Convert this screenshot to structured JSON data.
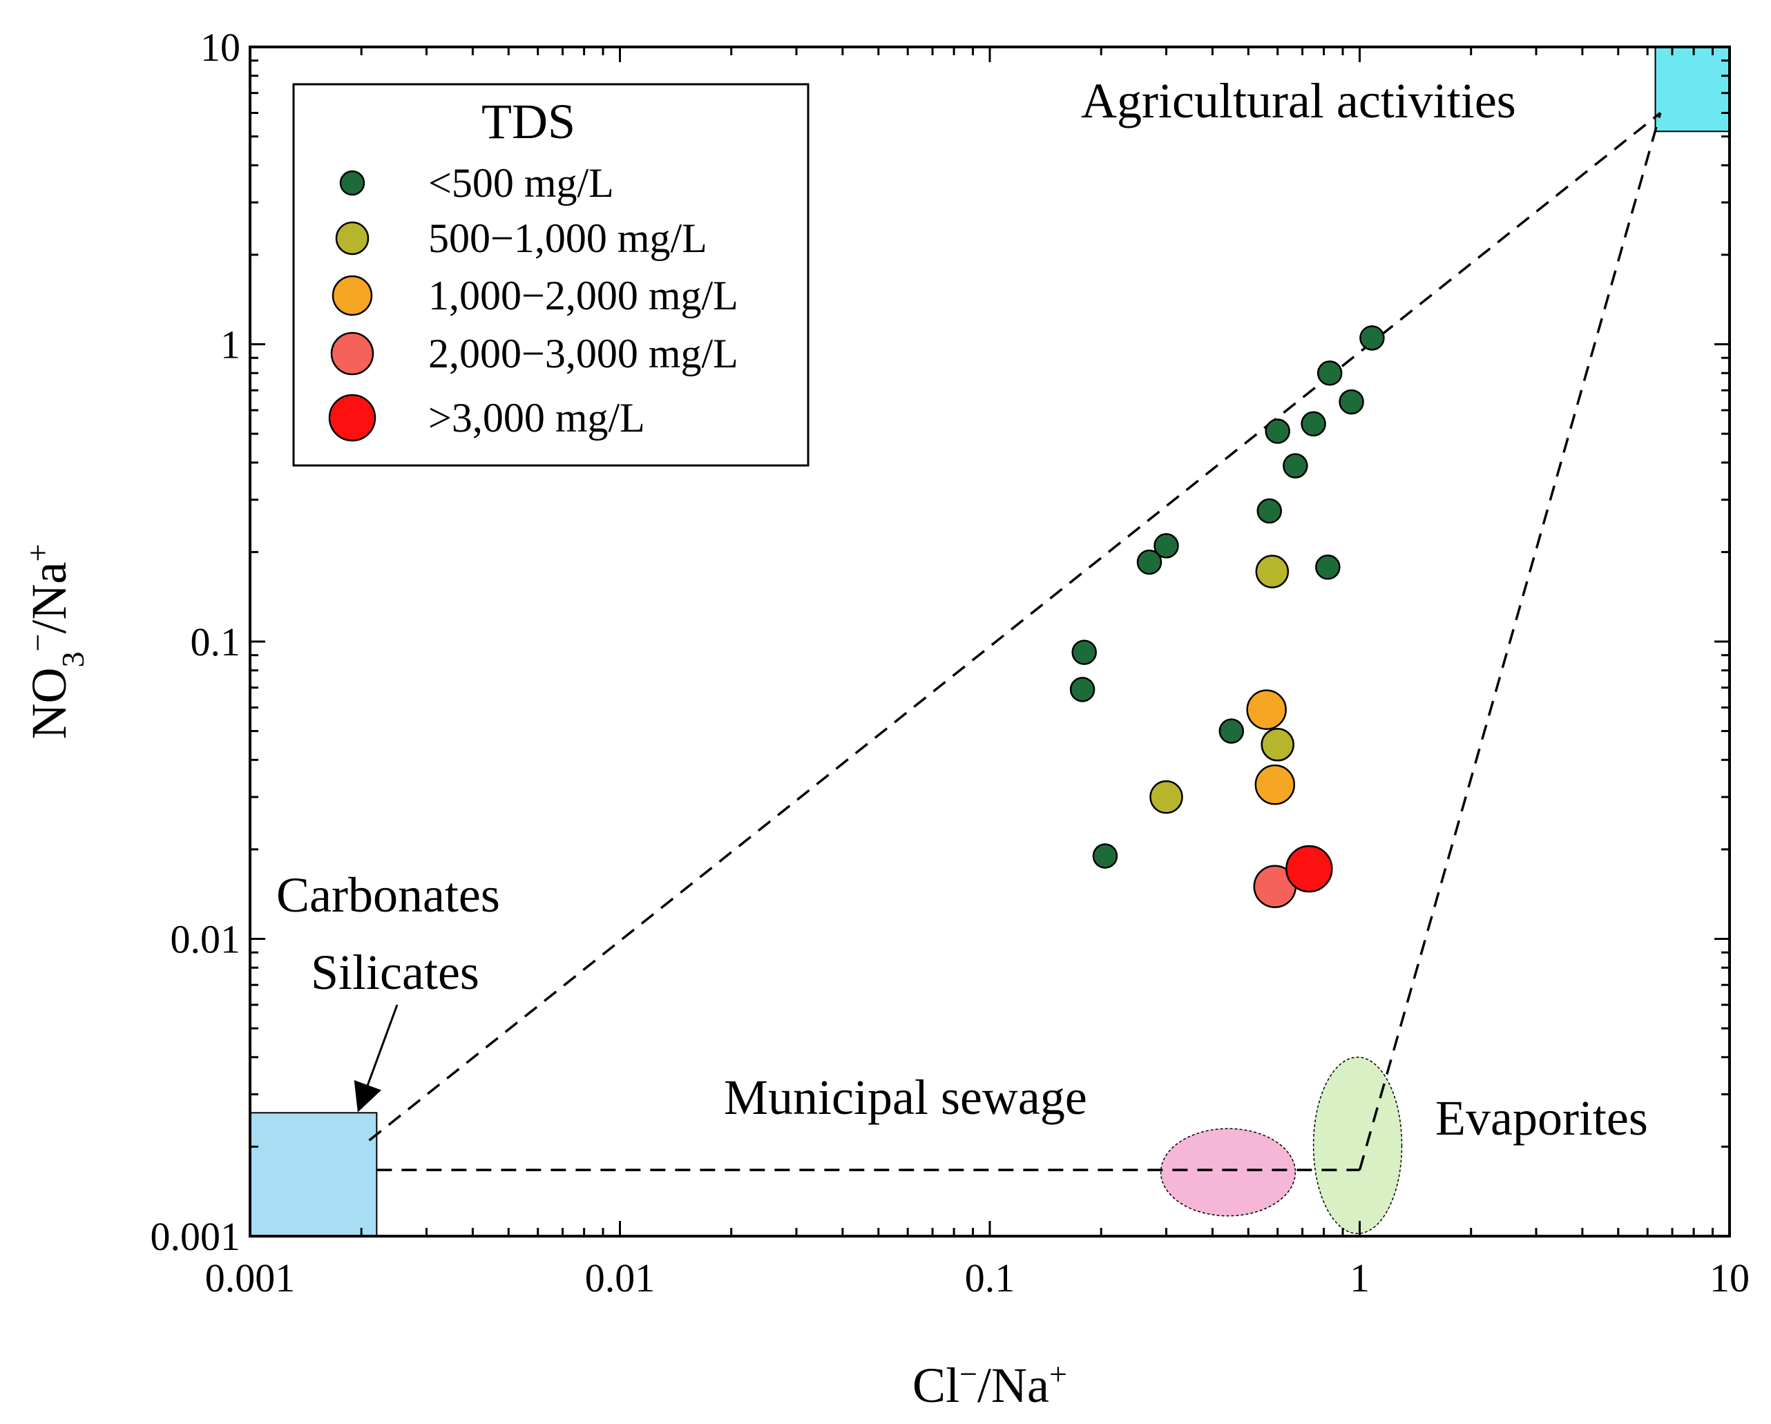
{
  "chart_data": {
    "type": "scatter",
    "x_scale": "log",
    "y_scale": "log",
    "xlim": [
      0.001,
      10
    ],
    "ylim": [
      0.001,
      10
    ],
    "x_ticks": [
      "0.001",
      "0.01",
      "0.1",
      "1",
      "10"
    ],
    "y_ticks": [
      "0.001",
      "0.01",
      "0.1",
      "1",
      "10"
    ],
    "xlabel": {
      "base": "Cl",
      "sup": "−",
      "mid": "/Na",
      "sup2": "+"
    },
    "ylabel": {
      "base": "NO",
      "sub": "3",
      "sup": "−",
      "mid": "/Na",
      "sup2": "+"
    },
    "legend": {
      "title": "TDS",
      "position": "top-left",
      "entries": [
        {
          "key": "lt500",
          "label": "<500 mg/L",
          "color": "#1e6b3a",
          "rank": 1
        },
        {
          "key": "500_1000",
          "label": " 500−1,000 mg/L",
          "color": "#b7b52b",
          "rank": 2
        },
        {
          "key": "1000_2000",
          "label": "1,000−2,000 mg/L",
          "color": "#f5a623",
          "rank": 3
        },
        {
          "key": "2000_3000",
          "label": "2,000−3,000 mg/L",
          "color": "#f4625a",
          "rank": 4
        },
        {
          "key": "gt3000",
          "label": ">3,000 mg/L",
          "color": "#ff1010",
          "rank": 5
        }
      ]
    },
    "series": [
      {
        "name": "<500 mg/L",
        "color": "#1e6b3a",
        "points": [
          [
            1.08,
            1.05
          ],
          [
            0.83,
            0.8
          ],
          [
            0.95,
            0.64
          ],
          [
            0.75,
            0.54
          ],
          [
            0.6,
            0.51
          ],
          [
            0.67,
            0.39
          ],
          [
            0.57,
            0.275
          ],
          [
            0.27,
            0.185
          ],
          [
            0.3,
            0.21
          ],
          [
            0.82,
            0.178
          ],
          [
            0.18,
            0.092
          ],
          [
            0.178,
            0.069
          ],
          [
            0.45,
            0.05
          ],
          [
            0.205,
            0.019
          ]
        ]
      },
      {
        "name": "500−1,000 mg/L",
        "color": "#b7b52b",
        "points": [
          [
            0.58,
            0.172
          ],
          [
            0.3,
            0.03
          ],
          [
            0.6,
            0.045
          ]
        ]
      },
      {
        "name": "1,000−2,000 mg/L",
        "color": "#f5a623",
        "points": [
          [
            0.56,
            0.059
          ],
          [
            0.59,
            0.033
          ]
        ]
      },
      {
        "name": "2,000−3,000 mg/L",
        "color": "#f4625a",
        "points": [
          [
            0.59,
            0.015
          ]
        ]
      },
      {
        "name": ">3,000 mg/L",
        "color": "#ff1010",
        "points": [
          [
            0.73,
            0.0172
          ]
        ]
      }
    ],
    "regions": [
      {
        "name": "Agricultural activities",
        "shape": "box",
        "color": "#6de8f2",
        "x_range": [
          6.3,
          10
        ],
        "y_range": [
          5.2,
          10
        ]
      },
      {
        "name": "Carbonates Silicates",
        "shape": "box",
        "color": "#a8def3",
        "x_range": [
          0.001,
          0.0022
        ],
        "y_range": [
          0.001,
          0.0026
        ]
      },
      {
        "name": "Municipal sewage",
        "shape": "ellipse",
        "color": "#f6b6d8",
        "x_range": [
          0.29,
          0.67
        ],
        "y_range": [
          0.00117,
          0.0023
        ]
      },
      {
        "name": "Evaporites",
        "shape": "ellipse",
        "color": "#d8f0c4",
        "x_range": [
          0.75,
          1.3
        ],
        "y_range": [
          0.00102,
          0.004
        ]
      }
    ],
    "guide_lines": [
      {
        "from": [
          0.0021,
          0.0021
        ],
        "to": [
          6.5,
          6.0
        ]
      },
      {
        "from": [
          0.0022,
          0.00167
        ],
        "to": [
          1.0,
          0.00167
        ]
      },
      {
        "from": [
          1.0,
          0.00167
        ],
        "to": [
          6.5,
          6.0
        ]
      }
    ],
    "annotations": [
      {
        "text_lines": [
          "Carbonates",
          "Silicates"
        ],
        "arrow_to": [
          0.0019,
          0.0027
        ]
      },
      {
        "text_lines": [
          "Municipal sewage"
        ]
      },
      {
        "text_lines": [
          "Evaporites"
        ]
      },
      {
        "text_lines": [
          "Agricultural activities"
        ]
      }
    ]
  }
}
